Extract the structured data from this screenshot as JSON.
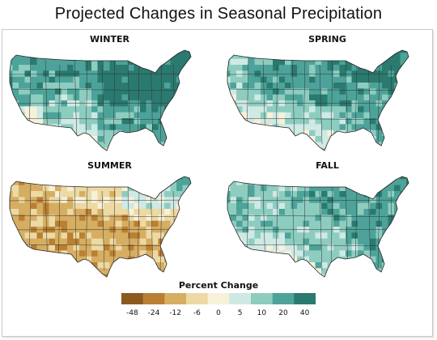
{
  "title": "Projected Changes in Seasonal Precipitation",
  "panels": [
    {
      "name": "WINTER",
      "pattern": "winter"
    },
    {
      "name": "SPRING",
      "pattern": "spring"
    },
    {
      "name": "SUMMER",
      "pattern": "summer"
    },
    {
      "name": "FALL",
      "pattern": "fall"
    }
  ],
  "legend": {
    "title": "Percent Change",
    "ticks": [
      "-48",
      "-24",
      "-12",
      "-6",
      "0",
      "5",
      "10",
      "20",
      "40"
    ],
    "colors": [
      "#8c5a1e",
      "#b97f32",
      "#d6ae62",
      "#ecd9a3",
      "#f7f1d9",
      "#cfe9e4",
      "#8dcdc0",
      "#4da399",
      "#2a7a70"
    ]
  }
}
